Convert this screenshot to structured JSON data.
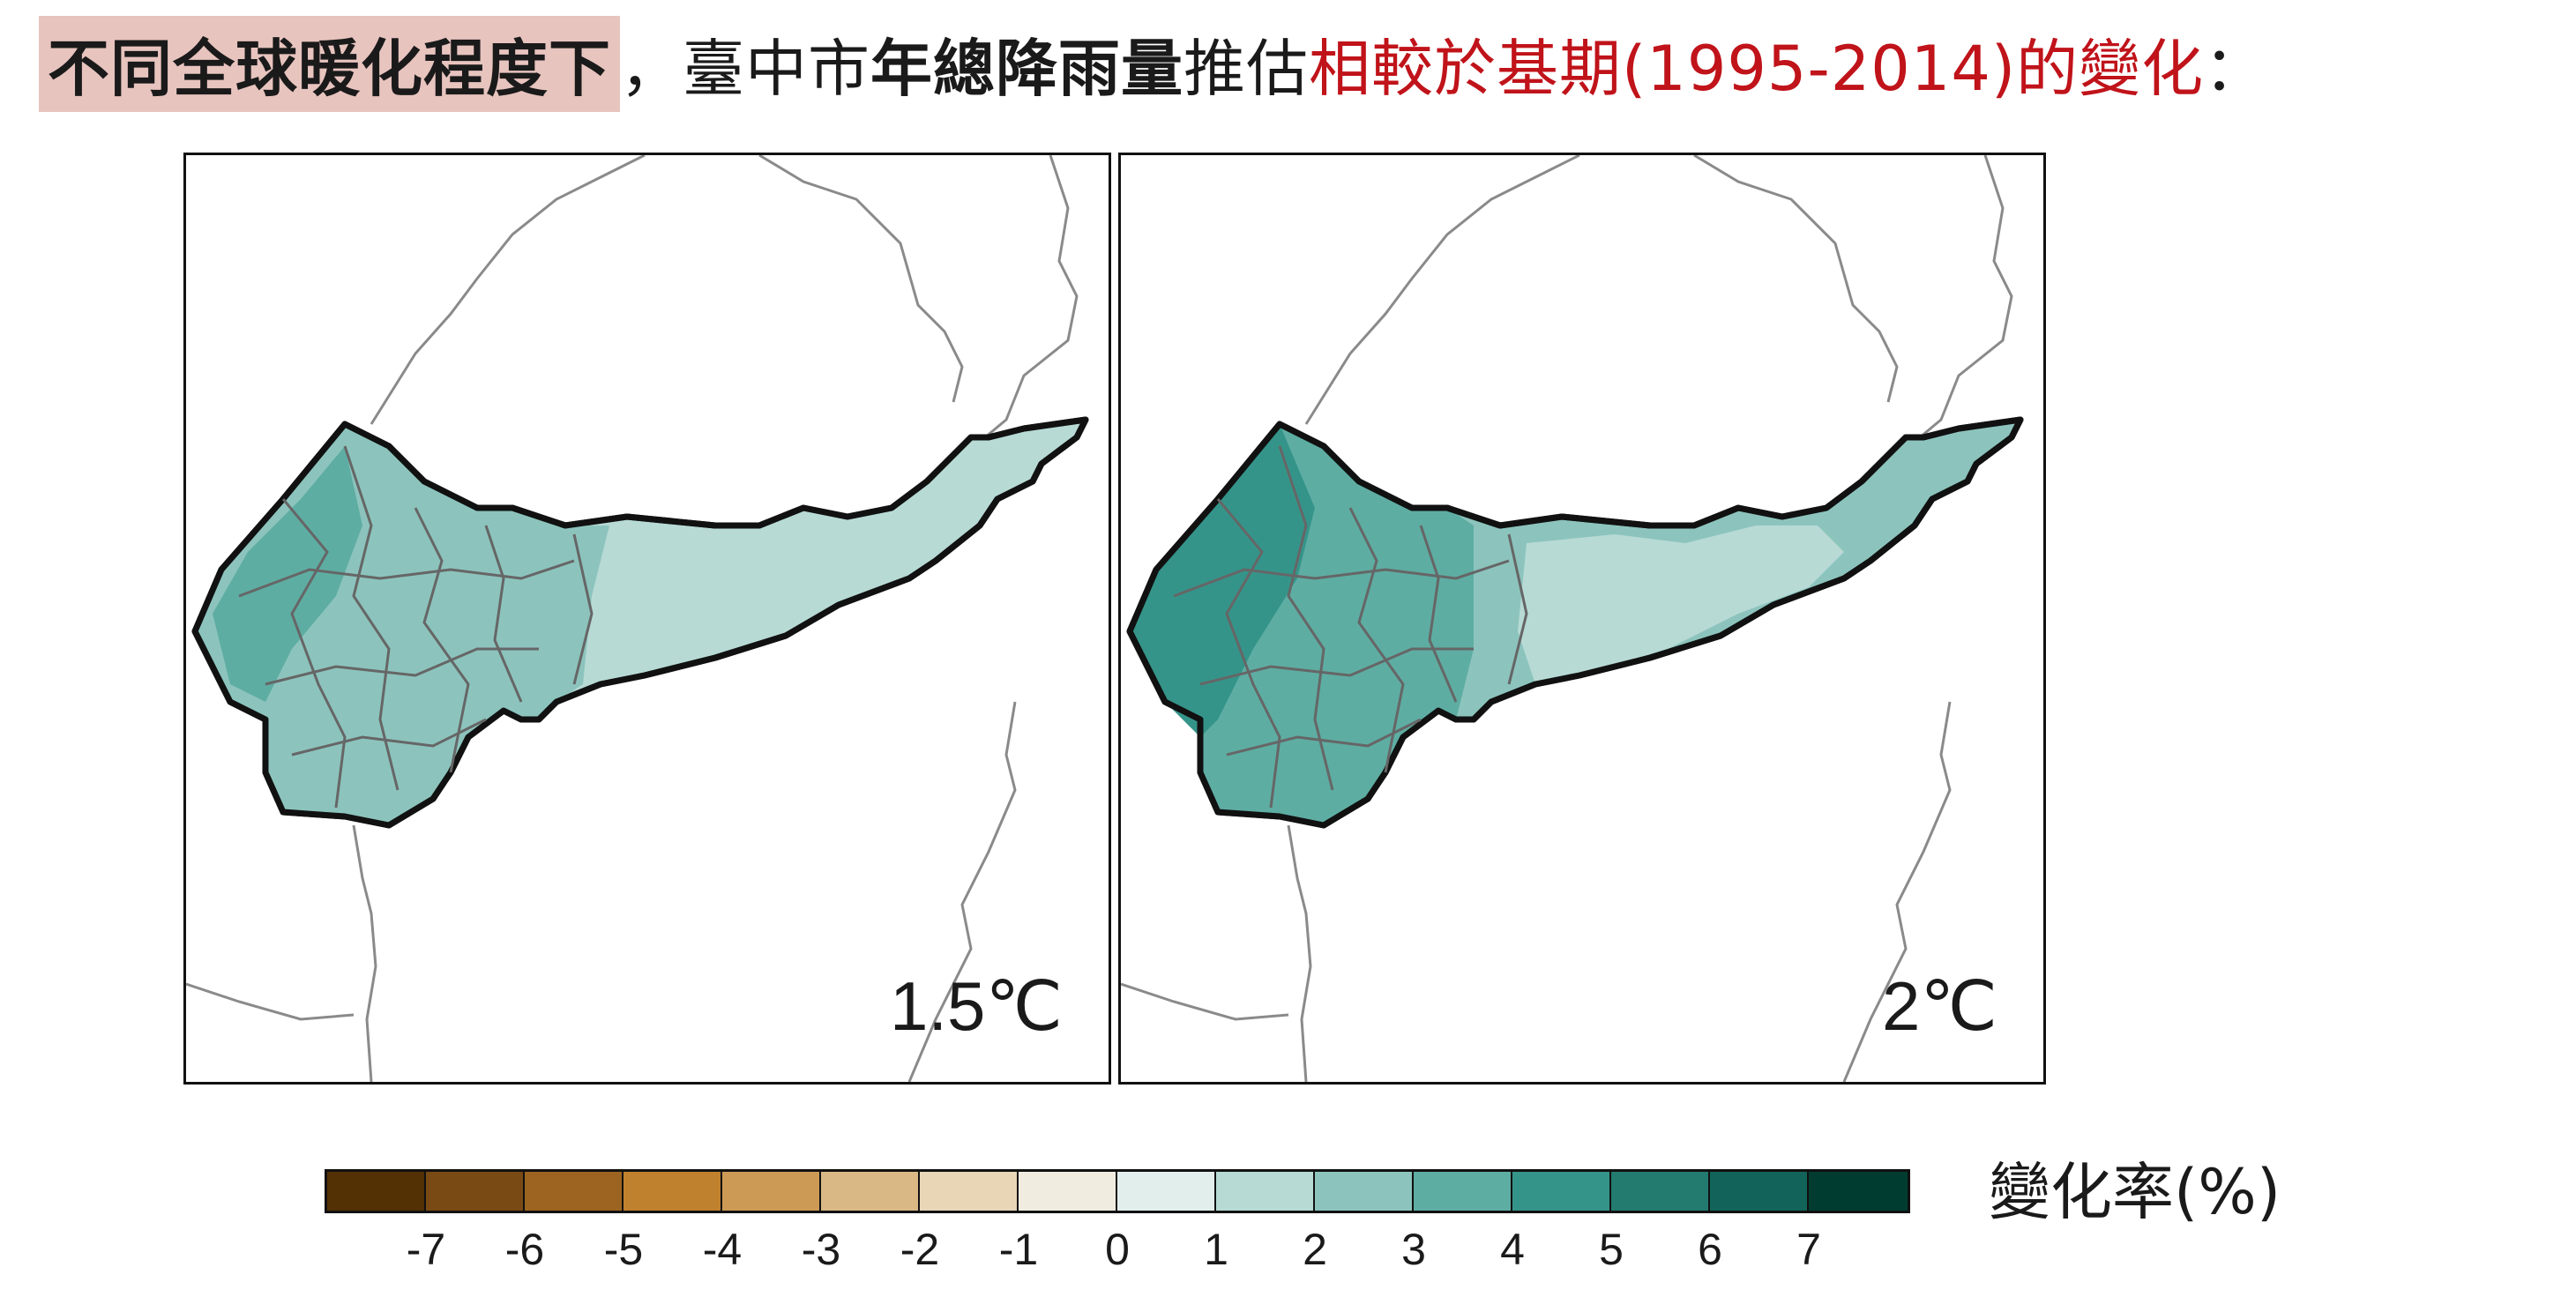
{
  "title": {
    "highlight": "不同全球暖化程度下",
    "part1": "，臺中市",
    "bold": "年總降雨量",
    "part2": "推估",
    "red": "相較於基期(1995-2014)的變化",
    "end": "："
  },
  "panels": [
    {
      "label": "1.5℃"
    },
    {
      "label": "2℃"
    }
  ],
  "colorbar": {
    "title": "變化率(%)",
    "ticks": [
      "-7",
      "-6",
      "-5",
      "-4",
      "-3",
      "-2",
      "-1",
      "0",
      "1",
      "2",
      "3",
      "4",
      "5",
      "6",
      "7"
    ],
    "colors": [
      "#543005",
      "#7a4a14",
      "#9c6420",
      "#c0812e",
      "#cd9a56",
      "#d9b886",
      "#e8d6b6",
      "#f1ece0",
      "#e2eeec",
      "#b7dad5",
      "#8cc4bd",
      "#5eada3",
      "#35948a",
      "#237b70",
      "#12645a",
      "#003c30"
    ]
  }
}
